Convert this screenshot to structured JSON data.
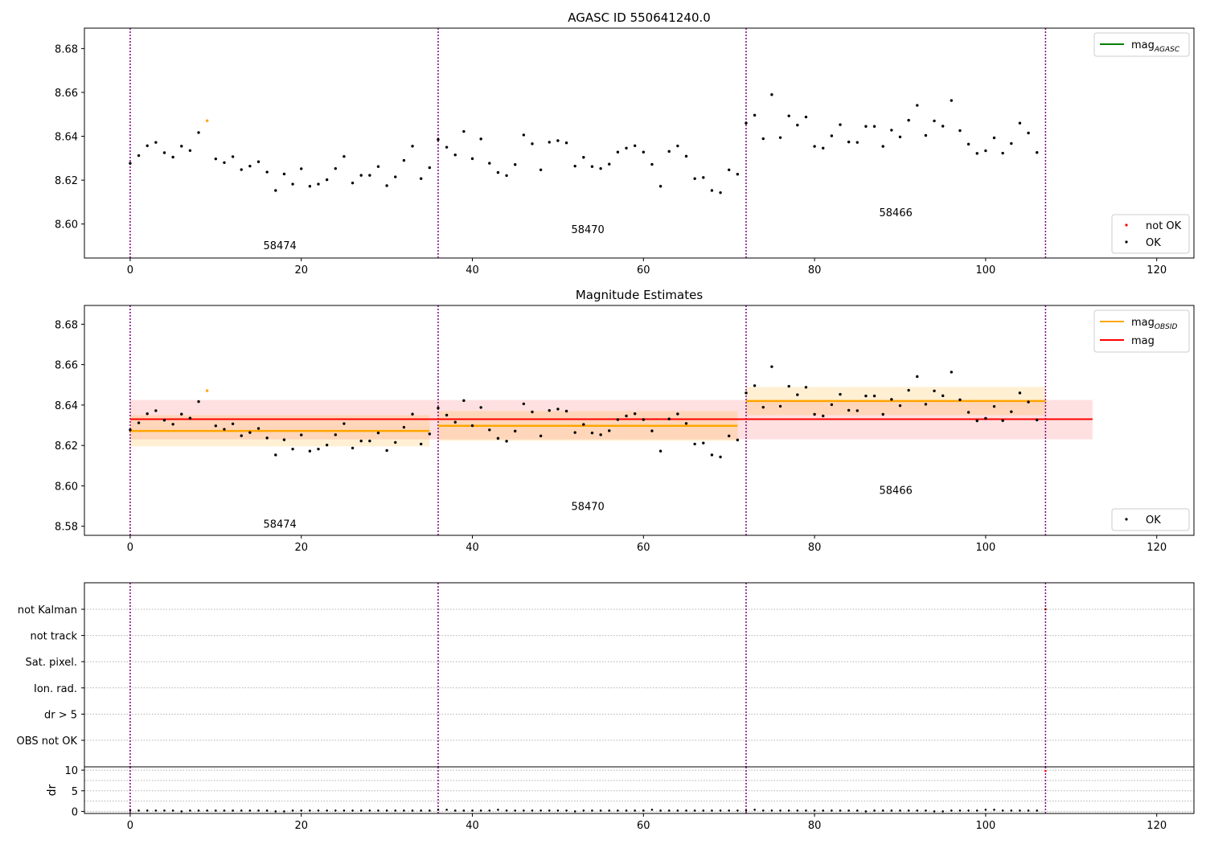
{
  "chart_data": [
    {
      "type": "scatter",
      "title": "AGASC ID 550641240.0",
      "xlim": [
        -5.35,
        124.35
      ],
      "ylim": [
        8.5845,
        8.6893
      ],
      "xticks": [
        0,
        20,
        40,
        60,
        80,
        100,
        120
      ],
      "yticks": [
        8.6,
        8.62,
        8.64,
        8.66,
        8.68
      ],
      "ytick_format": 2,
      "obs_boundaries": [
        0,
        36,
        72,
        107
      ],
      "obs_labels": [
        {
          "x": 17.5,
          "y": 8.5885,
          "text": "58474"
        },
        {
          "x": 53.5,
          "y": 8.5958,
          "text": "58470"
        },
        {
          "x": 89.5,
          "y": 8.6035,
          "text": "58466"
        }
      ],
      "series": [
        {
          "name": "OK",
          "color": "#000000",
          "x": [
            0,
            1,
            2,
            3,
            4,
            5,
            6,
            7,
            8,
            10,
            11,
            12,
            13,
            14,
            15,
            16,
            17,
            18,
            19,
            20,
            21,
            22,
            23,
            24,
            25,
            26,
            27,
            28,
            29,
            30,
            31,
            32,
            33,
            34,
            35,
            36,
            37,
            38,
            39,
            40,
            41,
            42,
            43,
            44,
            45,
            46,
            47,
            48,
            49,
            50,
            51,
            52,
            53,
            54,
            55,
            56,
            57,
            58,
            59,
            60,
            61,
            62,
            63,
            64,
            65,
            66,
            67,
            68,
            69,
            70,
            71,
            72,
            73,
            74,
            75,
            76,
            77,
            78,
            79,
            80,
            81,
            82,
            83,
            84,
            85,
            86,
            87,
            88,
            89,
            90,
            91,
            92,
            93,
            94,
            95,
            96,
            97,
            98,
            99,
            100,
            101,
            102,
            103,
            104,
            105,
            106
          ],
          "values": [
            8.6277,
            8.6312,
            8.6357,
            8.6372,
            8.6325,
            8.6305,
            8.6355,
            8.6335,
            8.6417,
            8.6297,
            8.628,
            8.6307,
            8.6248,
            8.6264,
            8.6284,
            8.6237,
            8.6153,
            8.6228,
            8.6182,
            8.6252,
            8.6172,
            8.6182,
            8.6202,
            8.6253,
            8.6308,
            8.6187,
            8.6222,
            8.6222,
            8.6262,
            8.6175,
            8.6215,
            8.629,
            8.6355,
            8.6207,
            8.6257,
            8.6385,
            8.635,
            8.6315,
            8.6422,
            8.6298,
            8.6388,
            8.6277,
            8.6235,
            8.6221,
            8.6271,
            8.6406,
            8.6366,
            8.6247,
            8.6373,
            8.638,
            8.637,
            8.6264,
            8.6304,
            8.6262,
            8.6253,
            8.6273,
            8.6328,
            8.6346,
            8.6357,
            8.6328,
            8.6272,
            8.6172,
            8.6331,
            8.6356,
            8.6309,
            8.6207,
            8.6212,
            8.6153,
            8.6143,
            8.6247,
            8.6227,
            8.646,
            8.6496,
            8.6389,
            8.659,
            8.6394,
            8.6493,
            8.6451,
            8.6488,
            8.6354,
            8.6346,
            8.6402,
            8.6453,
            8.6374,
            8.6372,
            8.6445,
            8.6445,
            8.6354,
            8.6428,
            8.6397,
            8.6473,
            8.6541,
            8.6404,
            8.647,
            8.6446,
            8.6563,
            8.6426,
            8.6364,
            8.6322,
            8.6334,
            8.6393,
            8.6323,
            8.6367,
            8.646,
            8.6415,
            8.6326
          ]
        },
        {
          "name": "not OK",
          "color": "#ff0000",
          "x": [],
          "values": []
        },
        {
          "name": "flagged",
          "color": "#ffa500",
          "x": [
            9
          ],
          "values": [
            8.6471
          ]
        }
      ],
      "legend_upper": {
        "position": "upper right",
        "entries": [
          {
            "label": "mag",
            "sub": "AGASC",
            "color": "#008000"
          }
        ]
      },
      "legend_lower": {
        "position": "lower right",
        "entries": [
          {
            "label": "not OK",
            "color": "#ff0000"
          },
          {
            "label": "OK",
            "color": "#000000"
          }
        ]
      }
    },
    {
      "type": "scatter",
      "title": "Magnitude Estimates",
      "xlim": [
        -5.35,
        124.35
      ],
      "ylim": [
        8.5755,
        8.6893
      ],
      "xticks": [
        0,
        20,
        40,
        60,
        80,
        100,
        120
      ],
      "yticks": [
        8.58,
        8.6,
        8.62,
        8.64,
        8.66,
        8.68
      ],
      "ytick_format": 2,
      "obs_boundaries": [
        0,
        36,
        72,
        107
      ],
      "obs_labels": [
        {
          "x": 17.5,
          "y": 8.5792,
          "text": "58474"
        },
        {
          "x": 53.5,
          "y": 8.588,
          "text": "58470"
        },
        {
          "x": 89.5,
          "y": 8.596,
          "text": "58466"
        }
      ],
      "mag": {
        "value": 8.633,
        "low": 8.623,
        "high": 8.6425,
        "x0": 0,
        "x1": 112.5,
        "color": "#ff0000"
      },
      "mag_obsid": [
        {
          "x0": 0,
          "x1": 35,
          "value": 8.6272,
          "low": 8.6195,
          "high": 8.635
        },
        {
          "x0": 36,
          "x1": 71,
          "value": 8.6297,
          "low": 8.6223,
          "high": 8.637
        },
        {
          "x0": 72,
          "x1": 107,
          "value": 8.642,
          "low": 8.635,
          "high": 8.649
        }
      ],
      "series": [
        {
          "name": "OK",
          "color": "#000000",
          "x": [
            0,
            1,
            2,
            3,
            4,
            5,
            6,
            7,
            8,
            10,
            11,
            12,
            13,
            14,
            15,
            16,
            17,
            18,
            19,
            20,
            21,
            22,
            23,
            24,
            25,
            26,
            27,
            28,
            29,
            30,
            31,
            32,
            33,
            34,
            35,
            36,
            37,
            38,
            39,
            40,
            41,
            42,
            43,
            44,
            45,
            46,
            47,
            48,
            49,
            50,
            51,
            52,
            53,
            54,
            55,
            56,
            57,
            58,
            59,
            60,
            61,
            62,
            63,
            64,
            65,
            66,
            67,
            68,
            69,
            70,
            71,
            72,
            73,
            74,
            75,
            76,
            77,
            78,
            79,
            80,
            81,
            82,
            83,
            84,
            85,
            86,
            87,
            88,
            89,
            90,
            91,
            92,
            93,
            94,
            95,
            96,
            97,
            98,
            99,
            100,
            101,
            102,
            103,
            104,
            105,
            106
          ],
          "values": [
            8.6277,
            8.6312,
            8.6357,
            8.6372,
            8.6325,
            8.6305,
            8.6355,
            8.6335,
            8.6417,
            8.6297,
            8.628,
            8.6307,
            8.6248,
            8.6264,
            8.6284,
            8.6237,
            8.6153,
            8.6228,
            8.6182,
            8.6252,
            8.6172,
            8.6182,
            8.6202,
            8.6253,
            8.6308,
            8.6187,
            8.6222,
            8.6222,
            8.6262,
            8.6175,
            8.6215,
            8.629,
            8.6355,
            8.6207,
            8.6257,
            8.6385,
            8.635,
            8.6315,
            8.6422,
            8.6298,
            8.6388,
            8.6277,
            8.6235,
            8.6221,
            8.6271,
            8.6406,
            8.6366,
            8.6247,
            8.6373,
            8.638,
            8.637,
            8.6264,
            8.6304,
            8.6262,
            8.6253,
            8.6273,
            8.6328,
            8.6346,
            8.6357,
            8.6328,
            8.6272,
            8.6172,
            8.6331,
            8.6356,
            8.6309,
            8.6207,
            8.6212,
            8.6153,
            8.6143,
            8.6247,
            8.6227,
            8.646,
            8.6496,
            8.6389,
            8.659,
            8.6394,
            8.6493,
            8.6451,
            8.6488,
            8.6354,
            8.6346,
            8.6402,
            8.6453,
            8.6374,
            8.6372,
            8.6445,
            8.6445,
            8.6354,
            8.6428,
            8.6397,
            8.6473,
            8.6541,
            8.6404,
            8.647,
            8.6446,
            8.6563,
            8.6426,
            8.6364,
            8.6322,
            8.6334,
            8.6393,
            8.6323,
            8.6367,
            8.646,
            8.6415,
            8.6326
          ]
        },
        {
          "name": "flagged",
          "color": "#ffa500",
          "x": [
            9
          ],
          "values": [
            8.6471
          ]
        }
      ],
      "legend_upper": {
        "position": "upper right",
        "entries": [
          {
            "label": "mag",
            "sub": "OBSID",
            "color": "#ffa500"
          },
          {
            "label": "mag",
            "color": "#ff0000"
          }
        ]
      },
      "legend_lower": {
        "position": "lower right",
        "entries": [
          {
            "label": "OK",
            "color": "#000000"
          }
        ]
      }
    },
    {
      "type": "table",
      "rows": [
        "not Kalman",
        "not track",
        "Sat. pixel.",
        "Ion. rad.",
        "dr > 5",
        "OBS not OK"
      ],
      "xlim": [
        -5.35,
        124.35
      ],
      "obs_boundaries": [
        0,
        36,
        72,
        107
      ],
      "flags": [
        {
          "row": "not Kalman",
          "x": 107
        }
      ]
    },
    {
      "type": "scatter",
      "ylabel": "dr",
      "xlim": [
        -5.35,
        124.35
      ],
      "ylim": [
        -0.5,
        10.8
      ],
      "xticks": [
        0,
        20,
        40,
        60,
        80,
        100,
        120
      ],
      "yticks": [
        0,
        5,
        10
      ],
      "ytick_format": 0,
      "obs_boundaries": [
        0,
        36,
        72,
        107
      ],
      "series": [
        {
          "name": "dr",
          "color": "#000000",
          "x": [
            0,
            1,
            2,
            3,
            4,
            5,
            6,
            7,
            8,
            9,
            10,
            11,
            12,
            13,
            14,
            15,
            16,
            17,
            18,
            19,
            20,
            21,
            22,
            23,
            24,
            25,
            26,
            27,
            28,
            29,
            30,
            31,
            32,
            33,
            34,
            35,
            36,
            37,
            38,
            39,
            40,
            41,
            42,
            43,
            44,
            45,
            46,
            47,
            48,
            49,
            50,
            51,
            52,
            53,
            54,
            55,
            56,
            57,
            58,
            59,
            60,
            61,
            62,
            63,
            64,
            65,
            66,
            67,
            68,
            69,
            70,
            71,
            72,
            73,
            74,
            75,
            76,
            77,
            78,
            79,
            80,
            81,
            82,
            83,
            84,
            85,
            86,
            87,
            88,
            89,
            90,
            91,
            92,
            93,
            94,
            95,
            96,
            97,
            98,
            99,
            100,
            101,
            102,
            103,
            104,
            105,
            106
          ],
          "values": [
            0.2,
            0.2,
            0.2,
            0.2,
            0.2,
            0.2,
            0.0,
            0.2,
            0.2,
            0.2,
            0.2,
            0.2,
            0.2,
            0.2,
            0.2,
            0.2,
            0.2,
            0.0,
            0.0,
            0.2,
            0.2,
            0.2,
            0.2,
            0.2,
            0.2,
            0.2,
            0.2,
            0.2,
            0.2,
            0.2,
            0.2,
            0.2,
            0.2,
            0.2,
            0.2,
            0.2,
            0.4,
            0.4,
            0.2,
            0.2,
            0.2,
            0.2,
            0.2,
            0.4,
            0.2,
            0.2,
            0.2,
            0.2,
            0.2,
            0.2,
            0.2,
            0.2,
            0.0,
            0.2,
            0.2,
            0.2,
            0.2,
            0.2,
            0.2,
            0.2,
            0.2,
            0.4,
            0.2,
            0.2,
            0.2,
            0.2,
            0.2,
            0.2,
            0.2,
            0.2,
            0.2,
            0.2,
            0.2,
            0.4,
            0.2,
            0.2,
            0.2,
            0.2,
            0.2,
            0.2,
            0.2,
            0.2,
            0.2,
            0.2,
            0.2,
            0.2,
            0.0,
            0.2,
            0.2,
            0.2,
            0.2,
            0.2,
            0.2,
            0.2,
            0.0,
            0.0,
            0.2,
            0.2,
            0.2,
            0.2,
            0.4,
            0.4,
            0.2,
            0.2,
            0.2,
            0.2,
            0.2
          ]
        },
        {
          "name": "flagged",
          "color": "#ff0000",
          "x": [
            107
          ],
          "values": [
            9.8
          ]
        }
      ]
    }
  ]
}
